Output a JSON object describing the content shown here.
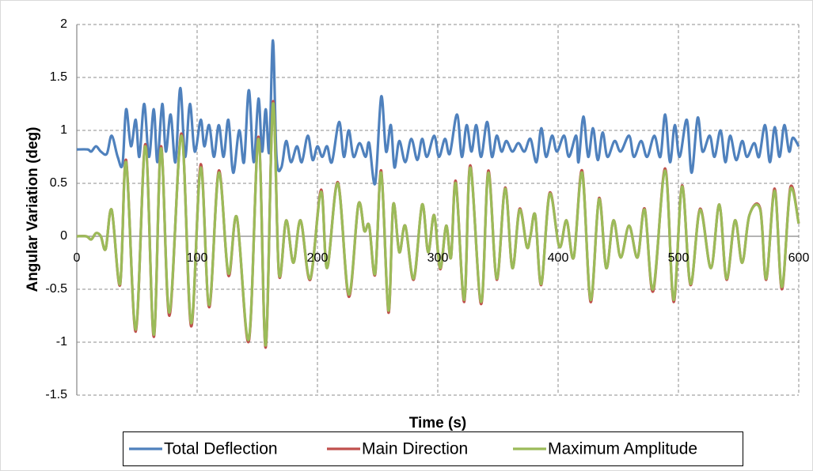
{
  "chart_data": {
    "type": "line",
    "xlabel": "Time (s)",
    "ylabel": "Angular Variation (deg)",
    "xlim": [
      0,
      600
    ],
    "xticks": [
      0,
      100,
      200,
      300,
      400,
      500,
      600
    ],
    "ylim": [
      -1.5,
      2
    ],
    "yticks": [
      {
        "value": -1.5,
        "label": "-1.5"
      },
      -1,
      {
        "value": -0.5,
        "label": "-0.5"
      },
      0,
      {
        "value": 0.5,
        "label": "0.5"
      },
      1,
      {
        "value": 1.5,
        "label": "1.5"
      },
      2
    ],
    "grid": true,
    "legend": "bottom",
    "series": [
      {
        "name": "Total Deflection",
        "color": "#4f81bd",
        "x": [
          0,
          9,
          12,
          16,
          20,
          25,
          29,
          34,
          38,
          41,
          45,
          49,
          52,
          56,
          60,
          64,
          67,
          71,
          74,
          78,
          82,
          86,
          90,
          94,
          98,
          103,
          106,
          110,
          114,
          118,
          122,
          126,
          130,
          135,
          139,
          143,
          147,
          151,
          154,
          157,
          160,
          163,
          166,
          170,
          174,
          178,
          183,
          187,
          192,
          196,
          200,
          204,
          208,
          212,
          218,
          222,
          226,
          230,
          235,
          240,
          243,
          248,
          253,
          257,
          261,
          264,
          268,
          273,
          278,
          283,
          287,
          291,
          297,
          301,
          306,
          310,
          316,
          320,
          324,
          328,
          332,
          336,
          341,
          345,
          349,
          353,
          357,
          362,
          367,
          372,
          377,
          382,
          386,
          390,
          395,
          399,
          405,
          409,
          415,
          417,
          421,
          425,
          429,
          433,
          437,
          441,
          447,
          452,
          459,
          463,
          469,
          474,
          480,
          485,
          489,
          493,
          497,
          501,
          507,
          511,
          516,
          520,
          526,
          530,
          535,
          539,
          543,
          548,
          553,
          557,
          563,
          567,
          572,
          576,
          580,
          584,
          588,
          592,
          595,
          600
        ],
        "values": [
          0.82,
          0.82,
          0.8,
          0.85,
          0.8,
          0.78,
          0.95,
          0.75,
          0.68,
          1.2,
          0.85,
          1.1,
          0.75,
          1.25,
          0.75,
          1.2,
          0.7,
          1.25,
          0.8,
          1.15,
          0.7,
          1.4,
          0.75,
          1.25,
          0.8,
          1.1,
          0.85,
          1.05,
          0.75,
          1.05,
          0.75,
          1.1,
          0.6,
          1.0,
          0.7,
          1.38,
          0.7,
          1.3,
          0.8,
          1.2,
          0.8,
          1.85,
          0.75,
          0.65,
          0.9,
          0.7,
          0.85,
          0.7,
          0.95,
          0.72,
          0.85,
          0.75,
          0.85,
          0.7,
          1.08,
          0.75,
          1.0,
          0.75,
          0.88,
          0.75,
          0.88,
          0.5,
          1.32,
          0.8,
          1.05,
          0.65,
          0.9,
          0.7,
          0.92,
          0.72,
          0.92,
          0.75,
          0.95,
          0.75,
          0.92,
          0.78,
          1.15,
          0.75,
          1.05,
          0.8,
          1.05,
          0.75,
          1.08,
          0.75,
          0.95,
          0.8,
          0.9,
          0.8,
          0.88,
          0.8,
          0.92,
          0.7,
          1.02,
          0.75,
          0.95,
          0.8,
          0.95,
          0.75,
          0.95,
          0.7,
          1.13,
          0.75,
          1.02,
          0.72,
          0.98,
          0.75,
          0.9,
          0.8,
          0.95,
          0.75,
          0.9,
          0.75,
          0.95,
          0.75,
          1.15,
          0.7,
          1.05,
          0.75,
          1.1,
          0.6,
          1.12,
          0.8,
          0.95,
          0.75,
          1.0,
          0.7,
          0.95,
          0.72,
          0.9,
          0.75,
          0.88,
          0.75,
          1.05,
          0.7,
          1.03,
          0.75,
          1.05,
          0.8,
          0.93,
          0.85
        ]
      },
      {
        "name": "Main Direction",
        "color": "#c0504d",
        "x": [
          0,
          8,
          12,
          16,
          20,
          24,
          29,
          36,
          41,
          49,
          57,
          64,
          70,
          77,
          87,
          95,
          103,
          110,
          118,
          126,
          133,
          143,
          151,
          157,
          163,
          168,
          174,
          180,
          186,
          194,
          203,
          208,
          217,
          226,
          234,
          239,
          243,
          248,
          253,
          259,
          263,
          268,
          273,
          280,
          287,
          292,
          297,
          302,
          307,
          311,
          315,
          322,
          327,
          336,
          342,
          349,
          356,
          362,
          368,
          374,
          377,
          381,
          386,
          393,
          401,
          407,
          413,
          420,
          427,
          434,
          440,
          446,
          452,
          459,
          466,
          472,
          479,
          489,
          496,
          503,
          510,
          518,
          527,
          534,
          540,
          547,
          553,
          559,
          568,
          573,
          580,
          586,
          593,
          600
        ],
        "values": [
          0,
          0,
          -0.03,
          0.03,
          0,
          -0.12,
          0.25,
          -0.46,
          0.72,
          -0.9,
          0.87,
          -0.95,
          0.85,
          -0.75,
          0.97,
          -0.85,
          0.68,
          -0.67,
          0.62,
          -0.37,
          0.18,
          -0.99,
          0.94,
          -1.05,
          1.27,
          -0.36,
          0.15,
          -0.25,
          0.15,
          -0.41,
          0.44,
          -0.3,
          0.51,
          -0.57,
          0.3,
          0.05,
          0.1,
          -0.36,
          0.62,
          -0.72,
          0.3,
          -0.15,
          0.1,
          -0.41,
          0.3,
          -0.15,
          0.2,
          -0.31,
          0.1,
          -0.2,
          0.52,
          -0.62,
          0.67,
          -0.64,
          0.62,
          -0.41,
          0.46,
          -0.3,
          0.26,
          -0.1,
          0,
          0.2,
          -0.46,
          0.41,
          -0.1,
          0.15,
          -0.2,
          0.62,
          -0.62,
          0.36,
          -0.3,
          0.15,
          -0.2,
          0.1,
          -0.2,
          0.26,
          -0.52,
          0.64,
          -0.62,
          0.48,
          -0.46,
          0.26,
          -0.3,
          0.3,
          -0.41,
          0.15,
          -0.25,
          0.2,
          0.26,
          -0.41,
          0.45,
          -0.5,
          0.46,
          0.12
        ]
      },
      {
        "name": "Maximum Amplitude",
        "color": "#9bbb59",
        "x": [
          0,
          8,
          12,
          16,
          20,
          24,
          29,
          36,
          41,
          49,
          57,
          64,
          70,
          77,
          87,
          95,
          103,
          110,
          118,
          126,
          133,
          143,
          151,
          157,
          163,
          168,
          174,
          180,
          186,
          194,
          203,
          208,
          217,
          226,
          234,
          239,
          243,
          248,
          253,
          259,
          263,
          268,
          273,
          280,
          287,
          292,
          297,
          302,
          307,
          311,
          315,
          322,
          327,
          336,
          342,
          349,
          356,
          362,
          368,
          374,
          377,
          381,
          386,
          393,
          401,
          407,
          413,
          420,
          427,
          434,
          440,
          446,
          452,
          459,
          466,
          472,
          479,
          489,
          496,
          503,
          510,
          518,
          527,
          534,
          540,
          547,
          553,
          559,
          568,
          573,
          580,
          586,
          593,
          600
        ],
        "values": [
          0,
          0,
          -0.03,
          0.03,
          0,
          -0.12,
          0.25,
          -0.45,
          0.7,
          -0.88,
          0.85,
          -0.93,
          0.83,
          -0.72,
          0.95,
          -0.82,
          0.65,
          -0.65,
          0.6,
          -0.35,
          0.18,
          -0.97,
          0.92,
          -1.03,
          1.25,
          -0.35,
          0.15,
          -0.25,
          0.15,
          -0.4,
          0.42,
          -0.3,
          0.5,
          -0.55,
          0.3,
          0.05,
          0.1,
          -0.35,
          0.6,
          -0.7,
          0.3,
          -0.15,
          0.1,
          -0.4,
          0.3,
          -0.15,
          0.2,
          -0.3,
          0.1,
          -0.2,
          0.5,
          -0.6,
          0.65,
          -0.62,
          0.6,
          -0.4,
          0.45,
          -0.3,
          0.25,
          -0.1,
          0,
          0.2,
          -0.45,
          0.4,
          -0.1,
          0.15,
          -0.2,
          0.6,
          -0.6,
          0.35,
          -0.3,
          0.15,
          -0.2,
          0.1,
          -0.2,
          0.25,
          -0.5,
          0.62,
          -0.6,
          0.47,
          -0.45,
          0.25,
          -0.3,
          0.3,
          -0.4,
          0.15,
          -0.25,
          0.2,
          0.25,
          -0.4,
          0.43,
          -0.48,
          0.44,
          0.12
        ]
      }
    ]
  }
}
